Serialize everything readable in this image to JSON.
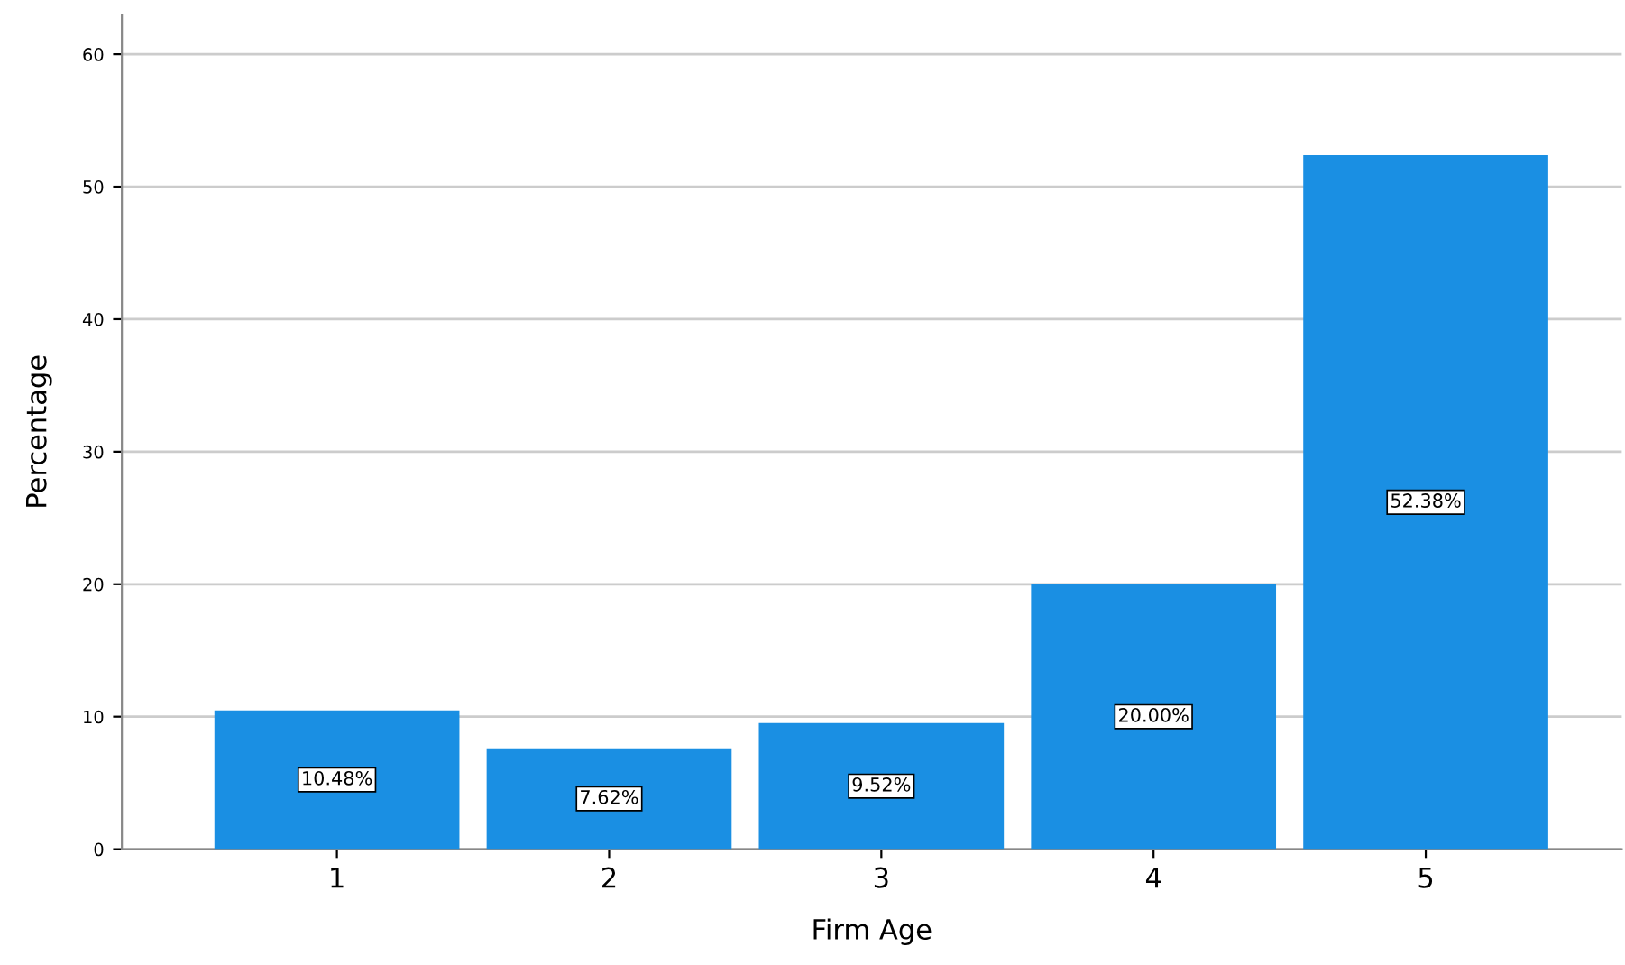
{
  "chart_data": {
    "type": "bar",
    "xlabel": "Firm Age",
    "ylabel": "Percentage",
    "categories": [
      "1",
      "2",
      "3",
      "4",
      "5"
    ],
    "values": [
      10.48,
      7.62,
      9.52,
      20.0,
      52.38
    ],
    "value_labels": [
      "10.48%",
      "7.62%",
      "9.52%",
      "20.00%",
      "52.38%"
    ],
    "color": "#1a8fe3",
    "ylim": [
      0,
      63
    ],
    "yticks": [
      0,
      10,
      20,
      30,
      40,
      50,
      60
    ],
    "grid": "y",
    "legend": false
  }
}
